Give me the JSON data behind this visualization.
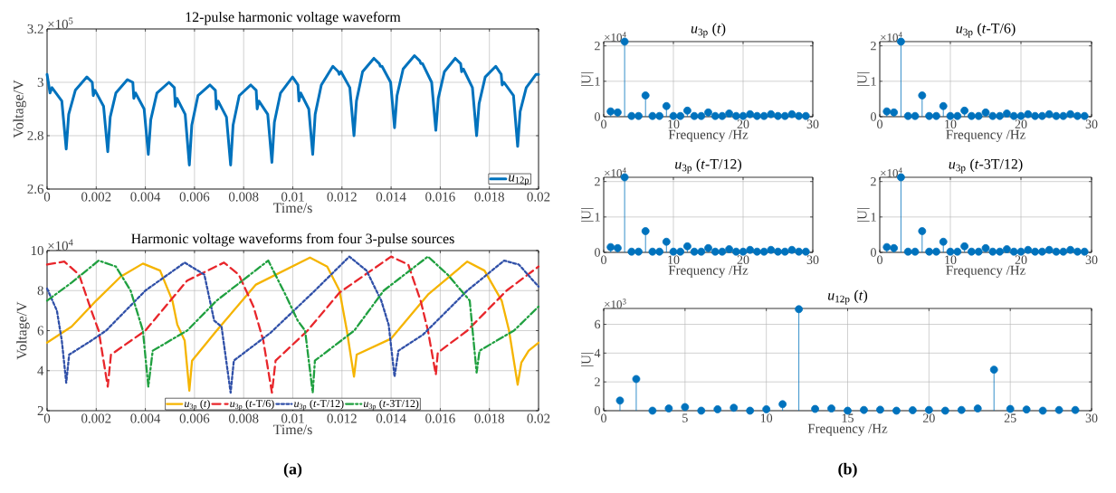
{
  "chart_data": [
    {
      "type": "line",
      "title": "12-pulse harmonic voltage waveform",
      "xlabel": "Time/s",
      "ylabel": "Voltage/V",
      "xlim": [
        0,
        0.02
      ],
      "ylim": [
        2.6,
        3.2
      ],
      "xticks": [
        0,
        0.002,
        0.004,
        0.006,
        0.008,
        0.01,
        0.012,
        0.014,
        0.016,
        0.018,
        0.02
      ],
      "yticks": [
        2.6,
        2.8,
        3,
        3.2
      ],
      "grid": true,
      "legend": "bottom right",
      "annotations": [
        "×10$^{5}$"
      ],
      "series": [
        {
          "name": "*u*$_{12p}$",
          "color": "#0072bd",
          "line_style": "solid",
          "x": [
            0,
            0.00012,
            0.0002,
            0.0006,
            0.00078,
            0.00088,
            0.00115,
            0.00162,
            0.00184,
            0.00188,
            0.00195,
            0.0023,
            0.00247,
            0.00257,
            0.0028,
            0.00327,
            0.00349,
            0.00353,
            0.0036,
            0.00395,
            0.00412,
            0.00422,
            0.00447,
            0.00496,
            0.00518,
            0.00522,
            0.00529,
            0.00562,
            0.00579,
            0.00589,
            0.00614,
            0.00663,
            0.00685,
            0.00689,
            0.00696,
            0.0073,
            0.00747,
            0.00757,
            0.00782,
            0.00829,
            0.00851,
            0.00855,
            0.00862,
            0.00898,
            0.00915,
            0.00925,
            0.0095,
            0.00999,
            0.01021,
            0.01025,
            0.01032,
            0.01065,
            0.01081,
            0.01091,
            0.01116,
            0.01163,
            0.01185,
            0.01189,
            0.01196,
            0.01232,
            0.01249,
            0.01259,
            0.01284,
            0.0133,
            0.01352,
            0.01356,
            0.01363,
            0.01398,
            0.01414,
            0.01424,
            0.01449,
            0.01495,
            0.01517,
            0.01521,
            0.01528,
            0.01565,
            0.01582,
            0.01592,
            0.01617,
            0.01661,
            0.01683,
            0.01687,
            0.01694,
            0.01731,
            0.01748,
            0.01758,
            0.01783,
            0.01826,
            0.01848,
            0.01852,
            0.01859,
            0.01898,
            0.01915,
            0.01925,
            0.0195,
            0.0199,
            0.02
          ],
          "values": [
            3.03,
            2.96,
            2.98,
            2.93,
            2.75,
            2.88,
            2.97,
            3.02,
            3.0,
            2.95,
            2.97,
            2.91,
            2.74,
            2.87,
            2.96,
            3.01,
            3.0,
            2.94,
            2.96,
            2.9,
            2.73,
            2.86,
            2.96,
            3.0,
            2.98,
            2.91,
            2.94,
            2.88,
            2.69,
            2.84,
            2.95,
            2.99,
            2.97,
            2.9,
            2.93,
            2.87,
            2.69,
            2.84,
            2.95,
            2.99,
            2.97,
            2.9,
            2.93,
            2.88,
            2.7,
            2.85,
            2.96,
            3.02,
            2.99,
            2.93,
            2.96,
            2.9,
            2.73,
            2.88,
            2.99,
            3.06,
            3.04,
            3.03,
            3.04,
            2.98,
            2.8,
            2.93,
            3.04,
            3.09,
            3.07,
            3.06,
            3.06,
            3.0,
            2.83,
            2.95,
            3.05,
            3.1,
            3.08,
            3.07,
            3.07,
            3.0,
            2.82,
            2.94,
            3.04,
            3.09,
            3.07,
            3.04,
            3.05,
            2.98,
            2.8,
            2.92,
            3.02,
            3.06,
            3.03,
            2.99,
            3.0,
            2.95,
            2.76,
            2.89,
            2.98,
            3.03,
            3.03
          ]
        }
      ]
    },
    {
      "type": "line",
      "title": "Harmonic voltage waveforms from four 3-pulse sources",
      "xlabel": "Time/s",
      "ylabel": "Voltage/V",
      "xlim": [
        0,
        0.02
      ],
      "ylim": [
        2,
        10
      ],
      "xticks": [
        0,
        0.002,
        0.004,
        0.006,
        0.008,
        0.01,
        0.012,
        0.014,
        0.016,
        0.018,
        0.02
      ],
      "yticks": [
        2,
        4,
        6,
        8,
        10
      ],
      "grid": true,
      "legend": "bottom",
      "annotations": [
        "×10$^{4}$",
        "(a)"
      ],
      "series": [
        {
          "name": "*u*$_{3p}$ (*t*)",
          "color": "#f5b400",
          "line_style": "solid",
          "x": [
            0,
            0.001,
            0.002,
            0.003,
            0.0039,
            0.0046,
            0.0051,
            0.0053,
            0.0056,
            0.00579,
            0.0059,
            0.0069,
            0.0085,
            0.0107,
            0.0114,
            0.0119,
            0.0122,
            0.01249,
            0.0126,
            0.014,
            0.0155,
            0.0171,
            0.0178,
            0.0185,
            0.0188,
            0.01915,
            0.0193,
            0.0196,
            0.02
          ],
          "values": [
            5.4,
            6.2,
            7.5,
            8.7,
            9.35,
            9.0,
            7.5,
            6.3,
            5.5,
            3.0,
            4.5,
            6.0,
            8.3,
            9.65,
            9.2,
            8.0,
            6.0,
            3.7,
            4.8,
            5.6,
            7.8,
            9.45,
            9.0,
            7.5,
            6.0,
            3.3,
            4.4,
            5.0,
            5.4
          ]
        },
        {
          "name": "*u*$_{3p}$ (*t*-T/6)",
          "color": "#e8262b",
          "line_style": "dashed",
          "x": [
            0,
            0.0007,
            0.0013,
            0.0018,
            0.0021,
            0.00247,
            0.0026,
            0.004,
            0.0057,
            0.0072,
            0.0078,
            0.0084,
            0.0088,
            0.00915,
            0.0093,
            0.0106,
            0.0119,
            0.014,
            0.0147,
            0.0152,
            0.0155,
            0.01582,
            0.0159,
            0.0171,
            0.0187,
            0.02
          ],
          "values": [
            9.3,
            9.45,
            8.8,
            7.0,
            6.0,
            3.2,
            4.8,
            6.0,
            8.5,
            9.4,
            8.8,
            7.2,
            5.5,
            2.9,
            4.5,
            6.0,
            7.9,
            9.7,
            9.3,
            7.5,
            6.0,
            3.8,
            4.9,
            6.0,
            8.0,
            9.2
          ]
        },
        {
          "name": "*u*$_{3p}$ (*t*-T/12)",
          "color": "#3050a8",
          "line_style": "dotted",
          "x": [
            0,
            0.0004,
            0.0006,
            0.00078,
            0.0009,
            0.0018,
            0.0024,
            0.004,
            0.0056,
            0.0064,
            0.0068,
            0.0071,
            0.00747,
            0.0076,
            0.0091,
            0.0109,
            0.0123,
            0.013,
            0.0136,
            0.0139,
            0.01414,
            0.0143,
            0.0153,
            0.0171,
            0.0186,
            0.0192,
            0.02
          ],
          "values": [
            8.1,
            7.0,
            5.5,
            3.4,
            4.8,
            5.5,
            6.0,
            8.0,
            9.4,
            8.8,
            6.5,
            6.2,
            2.9,
            4.5,
            5.9,
            8.0,
            9.7,
            9.0,
            7.5,
            6.3,
            3.7,
            5.0,
            5.8,
            8.0,
            9.5,
            9.3,
            8.2
          ]
        },
        {
          "name": "*u*$_{3p}$ (*t*-3T/12)",
          "color": "#20a040",
          "line_style": "dashdot",
          "x": [
            0,
            0.001,
            0.0021,
            0.0028,
            0.0034,
            0.0039,
            0.00412,
            0.0043,
            0.0057,
            0.0069,
            0.009,
            0.0097,
            0.0102,
            0.0105,
            0.01081,
            0.0109,
            0.0125,
            0.0137,
            0.0155,
            0.0163,
            0.0172,
            0.01748,
            0.0176,
            0.019,
            0.02
          ],
          "values": [
            7.5,
            8.4,
            9.5,
            9.2,
            8.0,
            6.0,
            3.2,
            5.0,
            6.0,
            7.5,
            9.5,
            7.8,
            6.5,
            6.0,
            2.9,
            4.5,
            6.0,
            8.0,
            9.7,
            8.8,
            7.5,
            3.9,
            5.0,
            6.0,
            7.2
          ]
        }
      ]
    },
    {
      "type": "lollipop",
      "title": "*u*$_{3p}$ (*t*)",
      "xlabel": "Frequency /Hz",
      "ylabel": "|U|",
      "xlim": [
        0,
        30
      ],
      "ylim": [
        0,
        2.12
      ],
      "xticks": [
        0,
        10,
        20,
        30
      ],
      "yticks": [
        0,
        1,
        2
      ],
      "grid": true,
      "marker": "circle",
      "annotations": [
        "×10$^{4}$"
      ],
      "x": [
        1,
        2,
        3,
        4,
        5,
        6,
        7,
        8,
        9,
        10,
        11,
        12,
        13,
        14,
        15,
        16,
        17,
        18,
        19,
        20,
        21,
        22,
        23,
        24,
        25,
        26,
        27,
        28,
        29
      ],
      "series": [
        {
          "color": "#0072bd",
          "values": [
            0.15,
            0.12,
            2.12,
            0.02,
            0.02,
            0.6,
            0.02,
            0.02,
            0.3,
            0.02,
            0.02,
            0.17,
            0.02,
            0.02,
            0.12,
            0.02,
            0.02,
            0.09,
            0.02,
            0.02,
            0.07,
            0.02,
            0.02,
            0.07,
            0.02,
            0.02,
            0.07,
            0.02,
            0.02
          ]
        }
      ]
    },
    {
      "type": "lollipop",
      "title": "*u*$_{3p}$ (*t*-T/6)",
      "xlabel": "Frequency /Hz",
      "ylabel": "|U|",
      "xlim": [
        0,
        30
      ],
      "ylim": [
        0,
        2.12
      ],
      "xticks": [
        0,
        10,
        20,
        30
      ],
      "yticks": [
        0,
        1,
        2
      ],
      "grid": true,
      "marker": "circle",
      "annotations": [
        "×10$^{4}$"
      ],
      "x": [
        1,
        2,
        3,
        4,
        5,
        6,
        7,
        8,
        9,
        10,
        11,
        12,
        13,
        14,
        15,
        16,
        17,
        18,
        19,
        20,
        21,
        22,
        23,
        24,
        25,
        26,
        27,
        28,
        29
      ],
      "series": [
        {
          "color": "#0072bd",
          "values": [
            0.15,
            0.12,
            2.12,
            0.02,
            0.02,
            0.6,
            0.02,
            0.02,
            0.3,
            0.02,
            0.02,
            0.17,
            0.02,
            0.02,
            0.12,
            0.02,
            0.02,
            0.09,
            0.02,
            0.02,
            0.07,
            0.02,
            0.02,
            0.07,
            0.02,
            0.02,
            0.07,
            0.02,
            0.02
          ]
        }
      ]
    },
    {
      "type": "lollipop",
      "title": "*u*$_{3p}$ (*t*-T/12)",
      "xlabel": "Frequency /Hz",
      "ylabel": "|U|",
      "xlim": [
        0,
        30
      ],
      "ylim": [
        0,
        2.12
      ],
      "xticks": [
        0,
        10,
        20,
        30
      ],
      "yticks": [
        0,
        1,
        2
      ],
      "grid": true,
      "marker": "circle",
      "annotations": [
        "×10$^{4}$"
      ],
      "x": [
        1,
        2,
        3,
        4,
        5,
        6,
        7,
        8,
        9,
        10,
        11,
        12,
        13,
        14,
        15,
        16,
        17,
        18,
        19,
        20,
        21,
        22,
        23,
        24,
        25,
        26,
        27,
        28,
        29
      ],
      "series": [
        {
          "color": "#0072bd",
          "values": [
            0.15,
            0.12,
            2.12,
            0.02,
            0.02,
            0.6,
            0.02,
            0.02,
            0.3,
            0.02,
            0.02,
            0.17,
            0.02,
            0.02,
            0.12,
            0.02,
            0.02,
            0.09,
            0.02,
            0.02,
            0.07,
            0.02,
            0.02,
            0.07,
            0.02,
            0.02,
            0.07,
            0.02,
            0.02
          ]
        }
      ]
    },
    {
      "type": "lollipop",
      "title": "*u*$_{3p}$ (*t*-3T/12)",
      "xlabel": "Frequency /Hz",
      "ylabel": "|U|",
      "xlim": [
        0,
        30
      ],
      "ylim": [
        0,
        2.12
      ],
      "xticks": [
        0,
        10,
        20,
        30
      ],
      "yticks": [
        0,
        1,
        2
      ],
      "grid": true,
      "marker": "circle",
      "annotations": [
        "×10$^{4}$"
      ],
      "x": [
        1,
        2,
        3,
        4,
        5,
        6,
        7,
        8,
        9,
        10,
        11,
        12,
        13,
        14,
        15,
        16,
        17,
        18,
        19,
        20,
        21,
        22,
        23,
        24,
        25,
        26,
        27,
        28,
        29
      ],
      "series": [
        {
          "color": "#0072bd",
          "values": [
            0.15,
            0.12,
            2.12,
            0.02,
            0.02,
            0.6,
            0.02,
            0.02,
            0.3,
            0.02,
            0.02,
            0.17,
            0.02,
            0.02,
            0.12,
            0.02,
            0.02,
            0.09,
            0.02,
            0.02,
            0.07,
            0.02,
            0.02,
            0.07,
            0.02,
            0.02,
            0.07,
            0.02,
            0.02
          ]
        }
      ]
    },
    {
      "type": "lollipop",
      "title": "*u*$_{12p}$ (*t*)",
      "xlabel": "Frequency /Hz",
      "ylabel": "|U|",
      "xlim": [
        0,
        30
      ],
      "ylim": [
        0,
        7.1
      ],
      "xticks": [
        0,
        5,
        10,
        15,
        20,
        25,
        30
      ],
      "yticks": [
        0,
        2,
        4,
        6
      ],
      "grid": true,
      "marker": "circle",
      "annotations": [
        "×10$^{3}$",
        "(b)"
      ],
      "x": [
        1,
        2,
        3,
        4,
        5,
        6,
        7,
        8,
        9,
        10,
        11,
        12,
        13,
        14,
        15,
        16,
        17,
        18,
        19,
        20,
        21,
        22,
        23,
        24,
        25,
        26,
        27,
        28,
        29
      ],
      "series": [
        {
          "color": "#0072bd",
          "values": [
            0.7,
            2.2,
            0,
            0.15,
            0.25,
            0,
            0.1,
            0.2,
            0,
            0.1,
            0.45,
            7.05,
            0.12,
            0.15,
            0,
            0.05,
            0.07,
            0,
            0.03,
            0.05,
            0,
            0.05,
            0.15,
            2.85,
            0.12,
            0.08,
            0,
            0.05,
            0.05
          ]
        }
      ]
    }
  ]
}
